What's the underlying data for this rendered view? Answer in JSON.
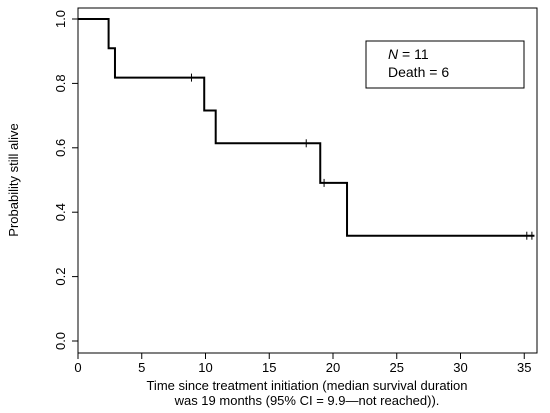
{
  "chart_data": {
    "type": "line",
    "subtype": "kaplan-meier-step",
    "xlabel_line1": "Time since treatment initiation (median survival duration",
    "xlabel_line2": "was 19 months (95% CI = 9.9—not reached)).",
    "ylabel": "Probability still alive",
    "xlim": [
      0,
      36
    ],
    "ylim": [
      0,
      1
    ],
    "x_ticks": [
      0,
      5,
      10,
      15,
      20,
      25,
      30,
      35
    ],
    "x_tick_labels": [
      "0",
      "5",
      "10",
      "15",
      "20",
      "25",
      "30",
      "35"
    ],
    "y_ticks": [
      0.0,
      0.2,
      0.4,
      0.6,
      0.8,
      1.0
    ],
    "y_tick_labels": [
      "0.0",
      "0.2",
      "0.4",
      "0.6",
      "0.8",
      "1.0"
    ],
    "grid": false,
    "legend_position": "top-right",
    "annotation": {
      "n_label": "N",
      "n_rest": " = 11",
      "death_text": "Death = 6"
    },
    "steps": [
      {
        "x": 0.0,
        "y": 1.0
      },
      {
        "x": 2.4,
        "y": 0.909
      },
      {
        "x": 2.9,
        "y": 0.818
      },
      {
        "x": 9.9,
        "y": 0.716
      },
      {
        "x": 10.8,
        "y": 0.614
      },
      {
        "x": 19.0,
        "y": 0.491
      },
      {
        "x": 21.1,
        "y": 0.327
      }
    ],
    "end_x": 35.8,
    "censored": [
      {
        "x": 8.9,
        "y": 0.818
      },
      {
        "x": 17.9,
        "y": 0.614
      },
      {
        "x": 19.3,
        "y": 0.491
      },
      {
        "x": 35.2,
        "y": 0.327
      },
      {
        "x": 35.6,
        "y": 0.327
      }
    ],
    "line_color": "#000000"
  }
}
